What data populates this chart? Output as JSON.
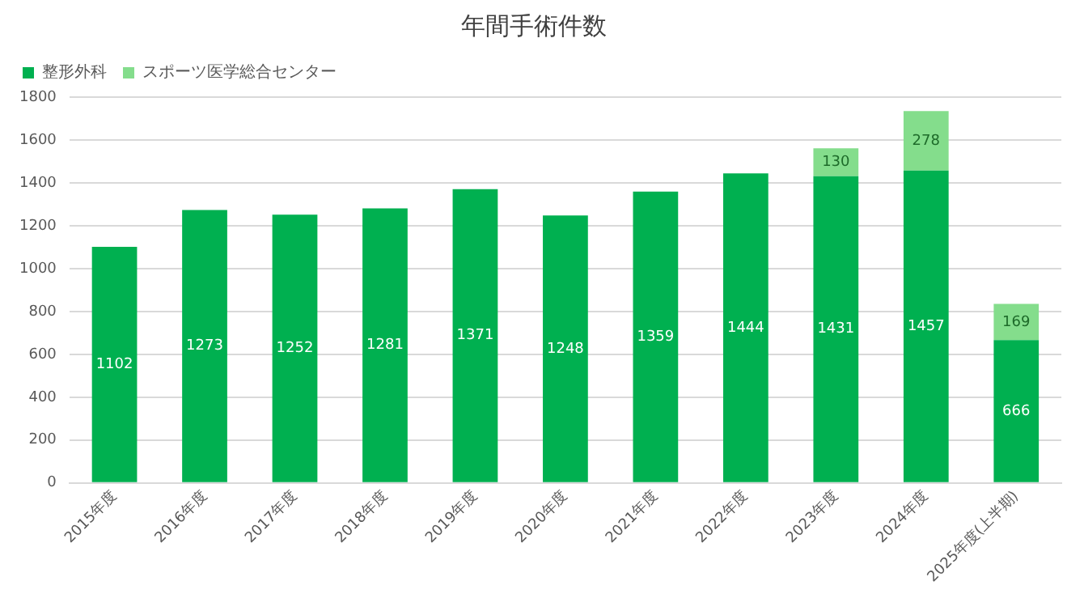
{
  "chart_data": {
    "type": "bar",
    "title": "年間手術件数",
    "stacked": true,
    "categories": [
      "2015年度",
      "2016年度",
      "2017年度",
      "2018年度",
      "2019年度",
      "2020年度",
      "2021年度",
      "2022年度",
      "2023年度",
      "2024年度",
      "2025年度(上半期)"
    ],
    "series": [
      {
        "name": "整形外科",
        "color": "#00b050",
        "values": [
          1102,
          1273,
          1252,
          1281,
          1371,
          1248,
          1359,
          1444,
          1431,
          1457,
          666
        ]
      },
      {
        "name": "スポーツ医学総合センター",
        "color": "#84dd8c",
        "values": [
          null,
          null,
          null,
          null,
          null,
          null,
          null,
          null,
          130,
          278,
          169
        ]
      }
    ],
    "ylim": [
      0,
      1800
    ],
    "yticks": [
      0,
      200,
      400,
      600,
      800,
      1000,
      1200,
      1400,
      1600,
      1800
    ],
    "grid": "y",
    "legend": "top left",
    "data_labels": true
  }
}
